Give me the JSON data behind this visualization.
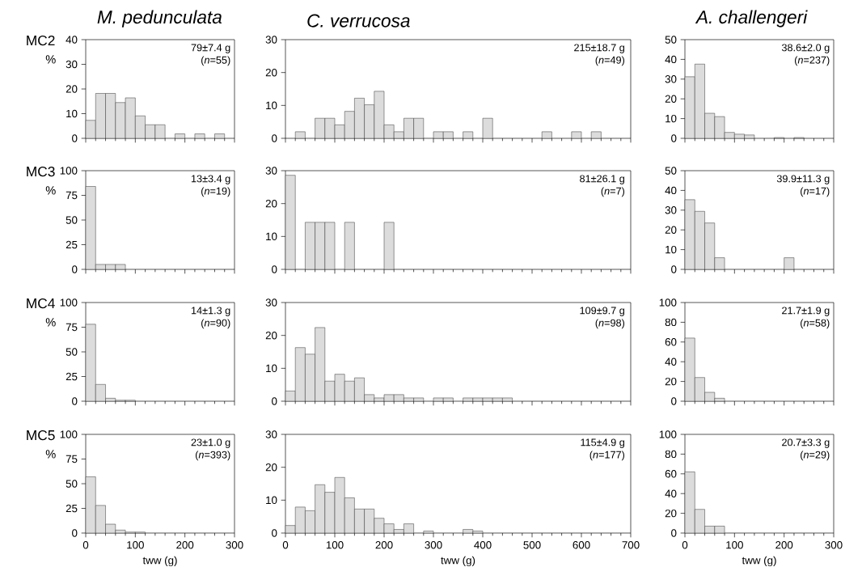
{
  "chart_data": [
    {
      "type": "histogram",
      "title": "*M. pedunculata*",
      "subtitle": "MC2",
      "ylabel": "%",
      "annotations": [
        "79±7.4 g",
        "(*n*=55)"
      ],
      "bins": [
        0,
        20,
        40,
        60,
        80,
        100,
        120,
        140,
        160,
        180,
        200,
        220,
        240,
        260,
        280
      ],
      "values": [
        7.3,
        18.2,
        18.2,
        14.5,
        16.4,
        9.1,
        5.5,
        5.5,
        0,
        1.8,
        0,
        1.8,
        0,
        1.8
      ],
      "color": "#dcdcdc",
      "xlim": [
        0,
        300
      ],
      "xticks": [
        0,
        100,
        200,
        300
      ],
      "ylim": [
        0,
        40
      ],
      "yticks": [
        0,
        10,
        20,
        30,
        40
      ],
      "tick_labels": "y"
    },
    {
      "type": "histogram",
      "title": "*C. verrucosa*",
      "annotations": [
        "215±18.7 g",
        "(*n*=49)"
      ],
      "bins": [
        0,
        20,
        40,
        60,
        80,
        100,
        120,
        140,
        160,
        180,
        200,
        220,
        240,
        260,
        280,
        300,
        320,
        340,
        360,
        380,
        400,
        420,
        440,
        460,
        480,
        500,
        520,
        540,
        560,
        580,
        600,
        620,
        640
      ],
      "values": [
        0,
        2,
        0,
        6.1,
        6.1,
        4.1,
        8.2,
        12.2,
        10.2,
        14.3,
        4.1,
        2,
        6.1,
        6.1,
        0,
        2,
        2,
        0,
        2,
        0,
        6.1,
        0,
        0,
        0,
        0,
        0,
        2,
        0,
        0,
        2,
        0,
        2
      ],
      "color": "#dcdcdc",
      "xlim": [
        0,
        700
      ],
      "xticks": [
        0,
        100,
        200,
        300,
        400,
        500,
        600,
        700
      ],
      "ylim": [
        0,
        30
      ],
      "yticks": [
        0,
        10,
        20,
        30
      ],
      "tick_labels": "y"
    },
    {
      "type": "histogram",
      "title": "*A. challengeri*",
      "annotations": [
        "38.6±2.0 g",
        "(*n*=237)"
      ],
      "bins": [
        0,
        20,
        40,
        60,
        80,
        100,
        120,
        140,
        160,
        180,
        200,
        220,
        240
      ],
      "values": [
        31.2,
        37.6,
        12.7,
        11.0,
        3.0,
        2.1,
        1.7,
        0,
        0,
        0.4,
        0,
        0.4
      ],
      "color": "#dcdcdc",
      "xlim": [
        0,
        300
      ],
      "xticks": [
        0,
        100,
        200,
        300
      ],
      "ylim": [
        0,
        50
      ],
      "yticks": [
        0,
        10,
        20,
        30,
        40,
        50
      ],
      "tick_labels": "y"
    },
    {
      "type": "histogram",
      "subtitle": "MC3",
      "ylabel": "%",
      "annotations": [
        "13±3.4 g",
        "(*n*=19)"
      ],
      "bins": [
        0,
        20,
        40,
        60,
        80
      ],
      "values": [
        84,
        5,
        5,
        5
      ],
      "color": "#dcdcdc",
      "xlim": [
        0,
        300
      ],
      "xticks": [
        0,
        100,
        200,
        300
      ],
      "ylim": [
        0,
        100
      ],
      "yticks": [
        0,
        25,
        50,
        75,
        100
      ],
      "tick_labels": "y"
    },
    {
      "type": "histogram",
      "annotations": [
        "81±26.1 g",
        "(*n*=7)"
      ],
      "bins": [
        0,
        20,
        40,
        60,
        80,
        100,
        120,
        140,
        160,
        180,
        200,
        220
      ],
      "values": [
        28.6,
        0,
        14.3,
        14.3,
        14.3,
        0,
        14.3,
        0,
        0,
        0,
        14.3
      ],
      "color": "#dcdcdc",
      "xlim": [
        0,
        700
      ],
      "xticks": [
        0,
        100,
        200,
        300,
        400,
        500,
        600,
        700
      ],
      "ylim": [
        0,
        30
      ],
      "yticks": [
        0,
        10,
        20,
        30
      ],
      "tick_labels": "y"
    },
    {
      "type": "histogram",
      "annotations": [
        "39.9±11.3 g",
        "(*n*=17)"
      ],
      "bins": [
        0,
        20,
        40,
        60,
        80,
        100,
        120,
        140,
        160,
        180,
        200,
        220
      ],
      "values": [
        35.3,
        29.4,
        23.5,
        5.9,
        0,
        0,
        0,
        0,
        0,
        0,
        5.9
      ],
      "color": "#dcdcdc",
      "xlim": [
        0,
        300
      ],
      "xticks": [
        0,
        100,
        200,
        300
      ],
      "ylim": [
        0,
        50
      ],
      "yticks": [
        0,
        10,
        20,
        30,
        40,
        50
      ],
      "tick_labels": "y"
    },
    {
      "type": "histogram",
      "subtitle": "MC4",
      "ylabel": "%",
      "annotations": [
        "14±1.3 g",
        "(*n*=90)"
      ],
      "bins": [
        0,
        20,
        40,
        60,
        80,
        100
      ],
      "values": [
        78,
        17,
        3,
        1,
        1
      ],
      "color": "#dcdcdc",
      "xlim": [
        0,
        300
      ],
      "xticks": [
        0,
        100,
        200,
        300
      ],
      "ylim": [
        0,
        100
      ],
      "yticks": [
        0,
        25,
        50,
        75,
        100
      ],
      "tick_labels": "y"
    },
    {
      "type": "histogram",
      "annotations": [
        "109±9.7 g",
        "(*n*=98)"
      ],
      "bins": [
        0,
        20,
        40,
        60,
        80,
        100,
        120,
        140,
        160,
        180,
        200,
        220,
        240,
        260,
        280,
        300,
        320,
        340,
        360,
        380,
        400,
        420,
        440,
        460
      ],
      "values": [
        3.1,
        16.3,
        14.3,
        22.4,
        6.1,
        8.2,
        6.1,
        7.1,
        2.0,
        1.0,
        2.0,
        2.0,
        1.0,
        1.0,
        0,
        1.0,
        1.0,
        0,
        1.0,
        1.0,
        1.0,
        1.0,
        1.0
      ],
      "color": "#dcdcdc",
      "xlim": [
        0,
        700
      ],
      "xticks": [
        0,
        100,
        200,
        300,
        400,
        500,
        600,
        700
      ],
      "ylim": [
        0,
        30
      ],
      "yticks": [
        0,
        10,
        20,
        30
      ],
      "tick_labels": "y"
    },
    {
      "type": "histogram",
      "annotations": [
        "21.7±1.9 g",
        "(*n*=58)"
      ],
      "bins": [
        0,
        20,
        40,
        60,
        80
      ],
      "values": [
        64,
        24,
        9,
        3
      ],
      "color": "#dcdcdc",
      "xlim": [
        0,
        300
      ],
      "xticks": [
        0,
        100,
        200,
        300
      ],
      "ylim": [
        0,
        100
      ],
      "yticks": [
        0,
        20,
        40,
        60,
        80,
        100
      ],
      "tick_labels": "y"
    },
    {
      "type": "histogram",
      "subtitle": "MC5",
      "ylabel": "%",
      "xlabel": "tww (g)",
      "annotations": [
        "23±1.0 g",
        "(*n*=393)"
      ],
      "bins": [
        0,
        20,
        40,
        60,
        80,
        100,
        120
      ],
      "values": [
        57,
        28,
        9,
        3,
        1,
        1
      ],
      "color": "#dcdcdc",
      "xlim": [
        0,
        300
      ],
      "xticks": [
        0,
        100,
        200,
        300
      ],
      "ylim": [
        0,
        100
      ],
      "yticks": [
        0,
        25,
        50,
        75,
        100
      ]
    },
    {
      "type": "histogram",
      "xlabel": "tww (g)",
      "annotations": [
        "115±4.9 g",
        "(*n*=177)"
      ],
      "bins": [
        0,
        20,
        40,
        60,
        80,
        100,
        120,
        140,
        160,
        180,
        200,
        220,
        240,
        260,
        280,
        300,
        320,
        340,
        360,
        380,
        400
      ],
      "values": [
        2.3,
        7.9,
        6.8,
        14.7,
        12.4,
        16.9,
        10.7,
        7.3,
        7.3,
        4.5,
        2.8,
        1.1,
        2.8,
        0,
        0.6,
        0,
        0,
        0,
        1.1,
        0.6
      ],
      "color": "#dcdcdc",
      "xlim": [
        0,
        700
      ],
      "xticks": [
        0,
        100,
        200,
        300,
        400,
        500,
        600,
        700
      ],
      "ylim": [
        0,
        30
      ],
      "yticks": [
        0,
        10,
        20,
        30
      ]
    },
    {
      "type": "histogram",
      "xlabel": "tww (g)",
      "annotations": [
        "20.7±3.3 g",
        "(*n*=29)"
      ],
      "bins": [
        0,
        20,
        40,
        60,
        80
      ],
      "values": [
        62,
        24,
        7,
        7
      ],
      "color": "#dcdcdc",
      "xlim": [
        0,
        300
      ],
      "xticks": [
        0,
        100,
        200,
        300
      ],
      "ylim": [
        0,
        100
      ],
      "yticks": [
        0,
        20,
        40,
        60,
        80,
        100
      ]
    }
  ]
}
